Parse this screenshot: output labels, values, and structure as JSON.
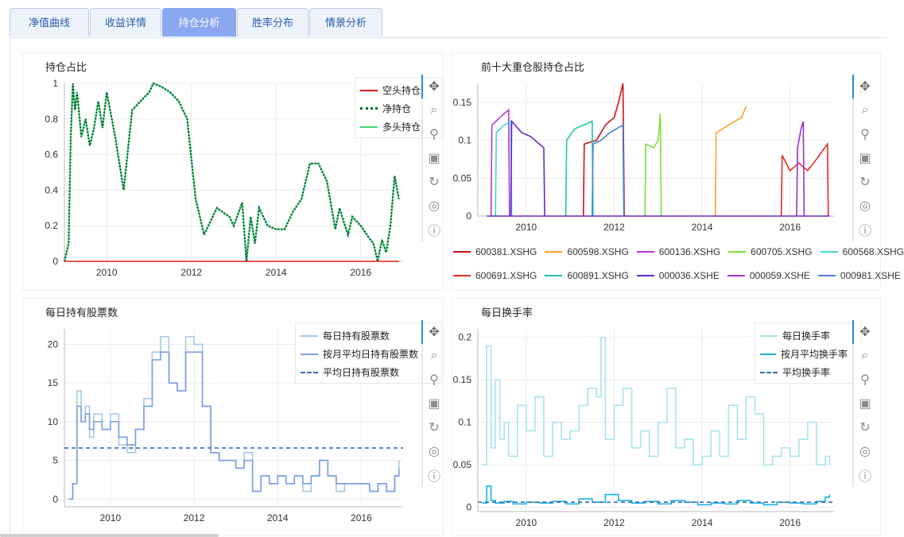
{
  "tabs": [
    {
      "label": "净值曲线",
      "active": false
    },
    {
      "label": "收益详情",
      "active": false
    },
    {
      "label": "持仓分析",
      "active": true
    },
    {
      "label": "胜率分布",
      "active": false
    },
    {
      "label": "情景分析",
      "active": false
    }
  ],
  "toolbar_icons": [
    "pan-icon",
    "box-zoom-icon",
    "wheel-zoom-icon",
    "save-icon",
    "reset-icon",
    "hover-icon",
    "help-icon"
  ],
  "panels": {
    "position_ratio": {
      "title": "持仓占比",
      "legend": [
        {
          "label": "空头持仓",
          "color": "#e41a1c",
          "style": "solid"
        },
        {
          "label": "净持仓",
          "color": "#006d2c",
          "style": "dotted"
        },
        {
          "label": "多头持仓",
          "color": "#41d67a",
          "style": "solid"
        }
      ]
    },
    "top10": {
      "title": "前十大重仓股持仓占比",
      "legend": [
        {
          "label": "600381.XSHG",
          "color": "#c9111c"
        },
        {
          "label": "600598.XSHG",
          "color": "#f7a226"
        },
        {
          "label": "600136.XSHG",
          "color": "#b533d9"
        },
        {
          "label": "600705.XSHG",
          "color": "#7be136"
        },
        {
          "label": "600568.XSHG",
          "color": "#3fd9c9"
        },
        {
          "label": "600691.XSHG",
          "color": "#e8281f"
        },
        {
          "label": "600891.XSHG",
          "color": "#1fc7a5"
        },
        {
          "label": "000036.XSHE",
          "color": "#6a28c9"
        },
        {
          "label": "000059.XSHE",
          "color": "#9b2ee0"
        },
        {
          "label": "000981.XSHE",
          "color": "#4a7fd6"
        }
      ]
    },
    "holdings": {
      "title": "每日持有股票数",
      "legend": [
        {
          "label": "每日持有股票数",
          "color": "#a6c8ea",
          "style": "solid"
        },
        {
          "label": "按月平均日持有股票数",
          "color": "#7b9de6",
          "style": "solid"
        },
        {
          "label": "平均日持有股票数",
          "color": "#3a6fb0",
          "style": "dashed"
        }
      ]
    },
    "turnover": {
      "title": "每日换手率",
      "legend": [
        {
          "label": "每日换手率",
          "color": "#a8e4ef",
          "style": "solid"
        },
        {
          "label": "按月平均换手率",
          "color": "#1ab0e8",
          "style": "solid"
        },
        {
          "label": "平均换手率",
          "color": "#3a6fb0",
          "style": "dashed"
        }
      ]
    }
  },
  "chart_data": [
    {
      "type": "line",
      "title": "持仓占比",
      "x_ticks": [
        "2010",
        "2012",
        "2014",
        "2016"
      ],
      "y_ticks": [
        "0",
        "0.2",
        "0.4",
        "0.6",
        "0.8",
        "1"
      ],
      "xlim": [
        2009.0,
        2017.0
      ],
      "ylim": [
        0,
        1
      ],
      "series": [
        {
          "name": "多头持仓",
          "x": [
            2009.0,
            2009.1,
            2009.15,
            2009.2,
            2009.25,
            2009.3,
            2009.4,
            2009.5,
            2009.6,
            2009.7,
            2009.8,
            2009.9,
            2010.0,
            2010.2,
            2010.4,
            2010.6,
            2010.8,
            2011.0,
            2011.1,
            2011.3,
            2011.5,
            2011.7,
            2011.9,
            2012.1,
            2012.3,
            2012.6,
            2012.9,
            2013.0,
            2013.2,
            2013.3,
            2013.4,
            2013.5,
            2013.6,
            2013.8,
            2014.0,
            2014.2,
            2014.4,
            2014.6,
            2014.8,
            2015.0,
            2015.2,
            2015.4,
            2015.5,
            2015.6,
            2015.7,
            2015.8,
            2016.0,
            2016.2,
            2016.3,
            2016.4,
            2016.5,
            2016.6,
            2016.7,
            2016.8,
            2016.9
          ],
          "y": [
            0.0,
            0.1,
            0.7,
            1.0,
            0.85,
            0.95,
            0.7,
            0.8,
            0.65,
            0.75,
            0.9,
            0.75,
            0.95,
            0.7,
            0.4,
            0.85,
            0.9,
            0.95,
            1.0,
            0.98,
            0.95,
            0.9,
            0.8,
            0.35,
            0.15,
            0.3,
            0.25,
            0.2,
            0.33,
            0.0,
            0.25,
            0.1,
            0.3,
            0.2,
            0.18,
            0.18,
            0.28,
            0.35,
            0.55,
            0.55,
            0.45,
            0.18,
            0.3,
            0.22,
            0.15,
            0.25,
            0.2,
            0.13,
            0.1,
            0.0,
            0.12,
            0.05,
            0.2,
            0.48,
            0.35
          ]
        },
        {
          "name": "净持仓",
          "x": [
            2009.0,
            2009.1,
            2009.15,
            2009.2,
            2009.25,
            2009.3,
            2009.4,
            2009.5,
            2009.6,
            2009.7,
            2009.8,
            2009.9,
            2010.0,
            2010.2,
            2010.4,
            2010.6,
            2010.8,
            2011.0,
            2011.1,
            2011.3,
            2011.5,
            2011.7,
            2011.9,
            2012.1,
            2012.3,
            2012.6,
            2012.9,
            2013.0,
            2013.2,
            2013.3,
            2013.4,
            2013.5,
            2013.6,
            2013.8,
            2014.0,
            2014.2,
            2014.4,
            2014.6,
            2014.8,
            2015.0,
            2015.2,
            2015.4,
            2015.5,
            2015.6,
            2015.7,
            2015.8,
            2016.0,
            2016.2,
            2016.3,
            2016.4,
            2016.5,
            2016.6,
            2016.7,
            2016.8,
            2016.9
          ],
          "y": [
            0.0,
            0.1,
            0.7,
            1.0,
            0.85,
            0.95,
            0.7,
            0.8,
            0.65,
            0.75,
            0.9,
            0.75,
            0.95,
            0.7,
            0.4,
            0.85,
            0.9,
            0.95,
            1.0,
            0.98,
            0.95,
            0.9,
            0.8,
            0.35,
            0.15,
            0.3,
            0.25,
            0.2,
            0.33,
            0.0,
            0.25,
            0.1,
            0.3,
            0.2,
            0.18,
            0.18,
            0.28,
            0.35,
            0.55,
            0.55,
            0.45,
            0.18,
            0.3,
            0.22,
            0.15,
            0.25,
            0.2,
            0.13,
            0.1,
            0.0,
            0.12,
            0.05,
            0.2,
            0.48,
            0.35
          ]
        },
        {
          "name": "空头持仓",
          "x": [
            2009.0,
            2016.9
          ],
          "y": [
            0,
            0
          ]
        }
      ]
    },
    {
      "type": "line",
      "title": "前十大重仓股持仓占比",
      "x_ticks": [
        "2010",
        "2012",
        "2014",
        "2016"
      ],
      "y_ticks": [
        "0",
        "0.05",
        "0.1",
        "0.15"
      ],
      "xlim": [
        2008.9,
        2017.0
      ],
      "ylim": [
        0,
        0.175
      ],
      "series": [
        {
          "name": "600381.XSHG",
          "x": [
            2011.3,
            2011.32,
            2011.6,
            2011.8,
            2012.0,
            2012.1,
            2012.2,
            2012.23
          ],
          "y": [
            0,
            0.095,
            0.1,
            0.12,
            0.13,
            0.15,
            0.175,
            0
          ]
        },
        {
          "name": "600598.XSHG",
          "x": [
            2014.3,
            2014.32,
            2014.6,
            2014.9,
            2015.0
          ],
          "y": [
            0,
            0.11,
            0.12,
            0.13,
            0.145
          ]
        },
        {
          "name": "600136.XSHG",
          "x": [
            2009.2,
            2009.22,
            2009.4,
            2009.6,
            2009.62
          ],
          "y": [
            0,
            0.12,
            0.13,
            0.14,
            0
          ]
        },
        {
          "name": "600705.XSHG",
          "x": [
            2012.7,
            2012.72,
            2012.9,
            2013.0,
            2013.05,
            2013.07
          ],
          "y": [
            0,
            0.095,
            0.09,
            0.1,
            0.135,
            0
          ]
        },
        {
          "name": "600568.XSHG",
          "x": [
            2009.3,
            2009.32,
            2009.5,
            2009.65,
            2009.67
          ],
          "y": [
            0,
            0.11,
            0.12,
            0.125,
            0
          ]
        },
        {
          "name": "600691.XSHG",
          "x": [
            2015.8,
            2015.82,
            2016.0,
            2016.2,
            2016.4,
            2016.6,
            2016.85,
            2016.87
          ],
          "y": [
            0,
            0.08,
            0.06,
            0.07,
            0.06,
            0.075,
            0.095,
            0
          ]
        },
        {
          "name": "600891.XSHG",
          "x": [
            2010.9,
            2010.92,
            2011.1,
            2011.3,
            2011.5,
            2011.52
          ],
          "y": [
            0,
            0.1,
            0.115,
            0.12,
            0.125,
            0
          ]
        },
        {
          "name": "000036.XSHE",
          "x": [
            2009.65,
            2009.67,
            2009.9,
            2010.1,
            2010.4,
            2010.42
          ],
          "y": [
            0,
            0.125,
            0.11,
            0.105,
            0.09,
            0
          ]
        },
        {
          "name": "000059.XSHE",
          "x": [
            2016.15,
            2016.17,
            2016.25,
            2016.3,
            2016.32
          ],
          "y": [
            0,
            0.09,
            0.115,
            0.125,
            0
          ]
        },
        {
          "name": "000981.XSHE",
          "x": [
            2011.5,
            2011.52,
            2011.7,
            2011.9,
            2012.2,
            2012.22
          ],
          "y": [
            0,
            0.095,
            0.1,
            0.11,
            0.12,
            0
          ]
        }
      ]
    },
    {
      "type": "line",
      "title": "每日持有股票数",
      "x_ticks": [
        "2010",
        "2012",
        "2014",
        "2016"
      ],
      "y_ticks": [
        "0",
        "5",
        "10",
        "15",
        "20"
      ],
      "xlim": [
        2008.9,
        2017.0
      ],
      "ylim": [
        -1,
        22
      ],
      "series": [
        {
          "name": "每日持有股票数",
          "x": [
            2009.0,
            2009.1,
            2009.2,
            2009.3,
            2009.4,
            2009.5,
            2009.6,
            2009.8,
            2010.0,
            2010.2,
            2010.4,
            2010.6,
            2010.8,
            2011.0,
            2011.2,
            2011.4,
            2011.6,
            2011.8,
            2012.0,
            2012.2,
            2012.4,
            2012.6,
            2012.8,
            2013.0,
            2013.2,
            2013.4,
            2013.6,
            2013.8,
            2014.0,
            2014.2,
            2014.4,
            2014.6,
            2014.8,
            2015.0,
            2015.2,
            2015.4,
            2015.6,
            2015.8,
            2016.0,
            2016.2,
            2016.4,
            2016.6,
            2016.8,
            2016.9
          ],
          "y": [
            0,
            2,
            14,
            10,
            12,
            8,
            11,
            9,
            11,
            7,
            6,
            9,
            13,
            19,
            21,
            15,
            14,
            21,
            20,
            12,
            6,
            5,
            5,
            4,
            6,
            1,
            3,
            2,
            3,
            2,
            3,
            1,
            3,
            5,
            3,
            1,
            2,
            2,
            2,
            1,
            2,
            1,
            3,
            5
          ]
        },
        {
          "name": "按月平均日持有股票数",
          "x": [
            2009.0,
            2009.1,
            2009.2,
            2009.3,
            2009.4,
            2009.5,
            2009.6,
            2009.8,
            2010.0,
            2010.2,
            2010.4,
            2010.6,
            2010.8,
            2011.0,
            2011.2,
            2011.4,
            2011.6,
            2011.8,
            2012.0,
            2012.2,
            2012.4,
            2012.6,
            2012.8,
            2013.0,
            2013.2,
            2013.4,
            2013.6,
            2013.8,
            2014.0,
            2014.2,
            2014.4,
            2014.6,
            2014.8,
            2015.0,
            2015.2,
            2015.4,
            2015.6,
            2015.8,
            2016.0,
            2016.2,
            2016.4,
            2016.6,
            2016.8,
            2016.9
          ],
          "y": [
            0,
            2,
            12,
            10,
            11,
            9,
            10,
            9,
            10,
            8,
            7,
            9,
            12,
            18,
            19,
            15,
            14,
            19,
            19,
            12,
            6,
            5,
            5,
            4,
            5,
            1,
            3,
            2,
            3,
            2,
            3,
            2,
            3,
            5,
            3,
            2,
            2,
            2,
            2,
            1,
            2,
            1,
            3,
            4
          ]
        },
        {
          "name": "平均日持有股票数",
          "x": [
            2008.9,
            2017.0
          ],
          "y": [
            6.6,
            6.6
          ]
        }
      ]
    },
    {
      "type": "line",
      "title": "每日换手率",
      "x_ticks": [
        "2010",
        "2012",
        "2014",
        "2016"
      ],
      "y_ticks": [
        "0",
        "0.05",
        "0.1",
        "0.15",
        "0.2"
      ],
      "xlim": [
        2008.9,
        2017.0
      ],
      "ylim": [
        -0.005,
        0.21
      ],
      "series": [
        {
          "name": "每日换手率",
          "x": [
            2009.0,
            2009.1,
            2009.2,
            2009.3,
            2009.4,
            2009.5,
            2009.6,
            2009.8,
            2010.0,
            2010.2,
            2010.4,
            2010.6,
            2010.8,
            2011.0,
            2011.2,
            2011.4,
            2011.6,
            2011.7,
            2011.8,
            2012.0,
            2012.2,
            2012.4,
            2012.6,
            2012.8,
            2013.0,
            2013.2,
            2013.4,
            2013.6,
            2013.8,
            2014.0,
            2014.2,
            2014.4,
            2014.6,
            2014.8,
            2015.0,
            2015.2,
            2015.4,
            2015.6,
            2015.8,
            2016.0,
            2016.2,
            2016.4,
            2016.6,
            2016.8,
            2016.9
          ],
          "y": [
            0.05,
            0.19,
            0.07,
            0.15,
            0.08,
            0.1,
            0.06,
            0.12,
            0.09,
            0.13,
            0.06,
            0.1,
            0.08,
            0.09,
            0.12,
            0.14,
            0.13,
            0.2,
            0.08,
            0.12,
            0.14,
            0.07,
            0.09,
            0.06,
            0.1,
            0.14,
            0.07,
            0.08,
            0.05,
            0.06,
            0.09,
            0.06,
            0.12,
            0.08,
            0.13,
            0.11,
            0.05,
            0.06,
            0.07,
            0.06,
            0.08,
            0.1,
            0.05,
            0.06,
            0.05
          ]
        },
        {
          "name": "按月平均换手率",
          "x": [
            2009.0,
            2009.1,
            2009.2,
            2009.3,
            2009.5,
            2009.7,
            2010.0,
            2010.3,
            2010.6,
            2010.9,
            2011.2,
            2011.5,
            2011.8,
            2012.1,
            2012.4,
            2012.7,
            2013.0,
            2013.3,
            2013.6,
            2013.9,
            2014.2,
            2014.5,
            2014.8,
            2015.1,
            2015.4,
            2015.7,
            2016.0,
            2016.3,
            2016.6,
            2016.8,
            2016.9
          ],
          "y": [
            0.005,
            0.025,
            0.008,
            0.005,
            0.007,
            0.004,
            0.006,
            0.005,
            0.007,
            0.004,
            0.01,
            0.006,
            0.015,
            0.008,
            0.005,
            0.007,
            0.004,
            0.008,
            0.006,
            0.003,
            0.005,
            0.004,
            0.008,
            0.005,
            0.003,
            0.006,
            0.005,
            0.004,
            0.007,
            0.012,
            0.015
          ]
        },
        {
          "name": "平均换手率",
          "x": [
            2008.9,
            2017.0
          ],
          "y": [
            0.006,
            0.006
          ]
        }
      ]
    }
  ]
}
